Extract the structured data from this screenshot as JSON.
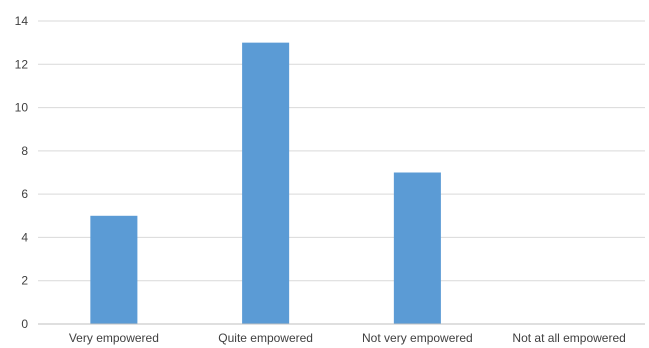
{
  "chart_data": {
    "type": "bar",
    "title": "",
    "xlabel": "",
    "ylabel": "",
    "categories": [
      "Very empowered",
      "Quite empowered",
      "Not very empowered",
      "Not at all empowered"
    ],
    "values": [
      5,
      13,
      7,
      0
    ],
    "ylim": [
      0,
      14
    ],
    "yticks": [
      0,
      2,
      4,
      6,
      8,
      10,
      12,
      14
    ],
    "grid": true,
    "legend": "none",
    "bar_color": "#5b9bd5"
  }
}
